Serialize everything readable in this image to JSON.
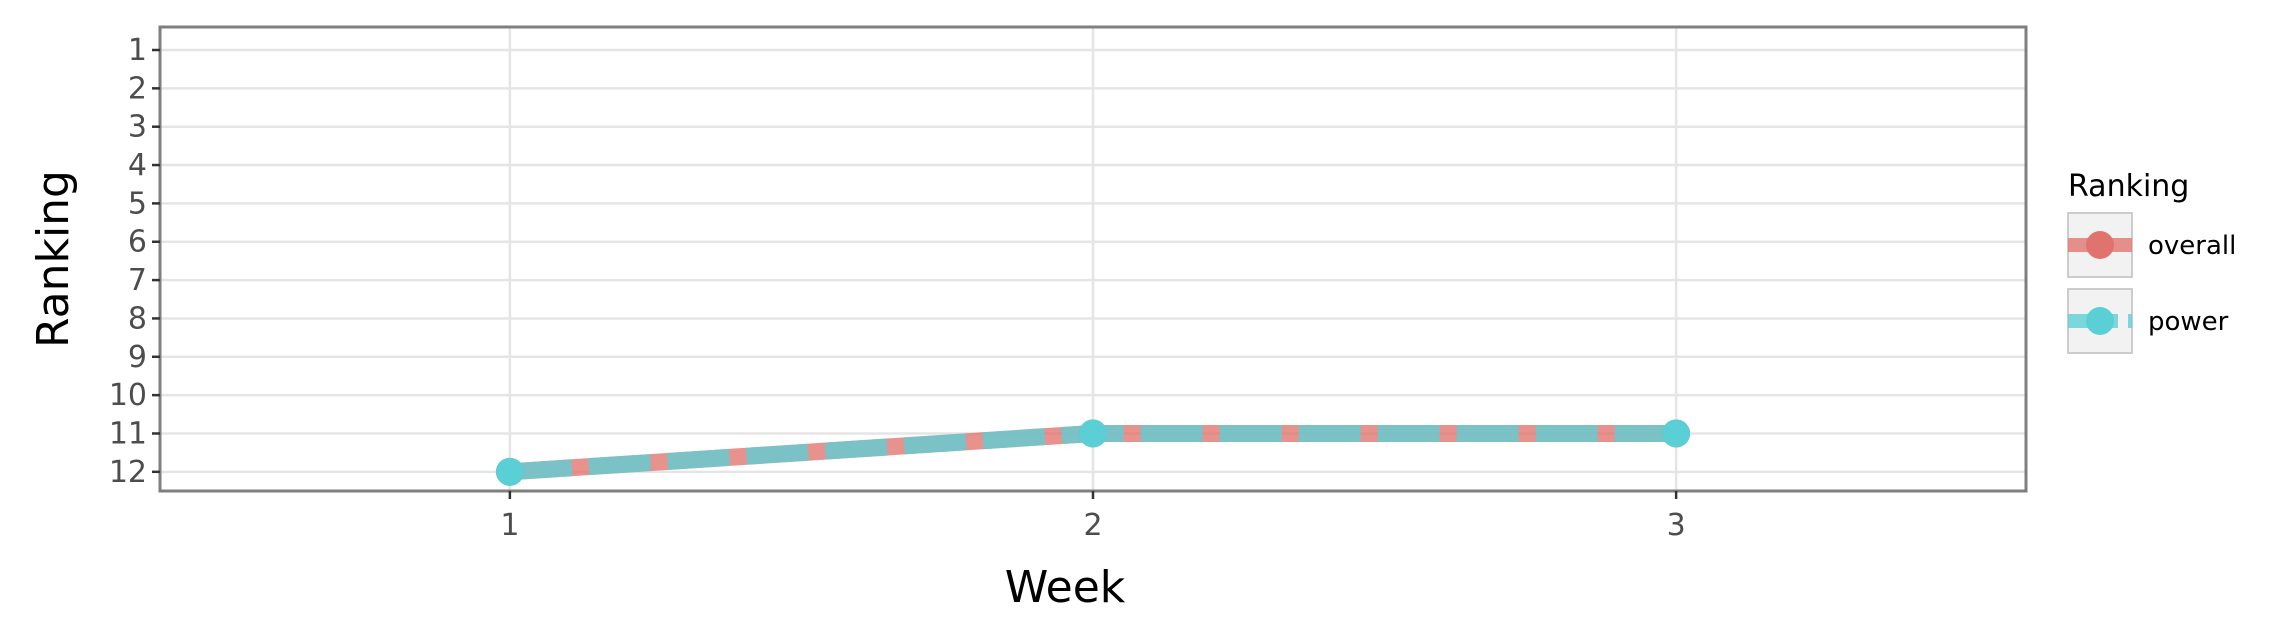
{
  "chart_data": {
    "type": "line",
    "title": "",
    "xlabel": "Week",
    "ylabel": "Ranking",
    "x": [
      1,
      2,
      3
    ],
    "xlim": [
      0.4,
      3.6
    ],
    "ylim": [
      12.5,
      0.4
    ],
    "y_reversed": true,
    "x_ticks": [
      "1",
      "2",
      "3"
    ],
    "y_ticks": [
      "1",
      "2",
      "3",
      "4",
      "5",
      "6",
      "7",
      "8",
      "9",
      "10",
      "11",
      "12"
    ],
    "grid": true,
    "legend": {
      "title": "Ranking",
      "placement": "right"
    },
    "series": [
      {
        "name": "overall",
        "values": [
          12,
          11,
          11
        ],
        "color": "#e0736d",
        "dashed": false
      },
      {
        "name": "power",
        "values": [
          12,
          11,
          11
        ],
        "color": "#5bcfd6",
        "dashed": true
      }
    ]
  }
}
